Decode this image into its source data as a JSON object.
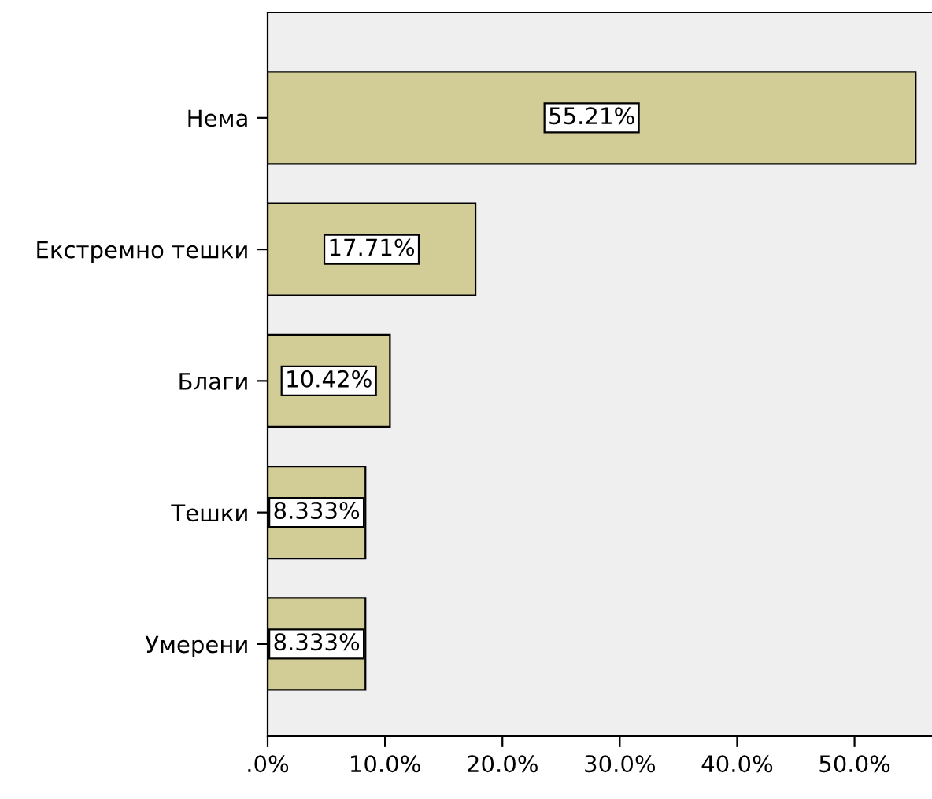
{
  "chart_data": {
    "type": "bar",
    "orientation": "horizontal",
    "categories": [
      "Нема",
      "Екстремно тешки",
      "Благи",
      "Тешки",
      "Умерени"
    ],
    "values": [
      55.21,
      17.71,
      10.42,
      8.333,
      8.333
    ],
    "value_labels": [
      "55.21%",
      "17.71%",
      "10.42%",
      "8.333%",
      "8.333%"
    ],
    "color": "#d2cd96",
    "xlim": [
      0,
      56.6
    ],
    "xticks": [
      {
        "value": 0,
        "label": ".0%"
      },
      {
        "value": 10,
        "label": "10.0%"
      },
      {
        "value": 20,
        "label": "20.0%"
      },
      {
        "value": 30,
        "label": "30.0%"
      },
      {
        "value": 40,
        "label": "40.0%"
      },
      {
        "value": 50,
        "label": "50.0%"
      }
    ],
    "grid": false,
    "legend": false
  }
}
